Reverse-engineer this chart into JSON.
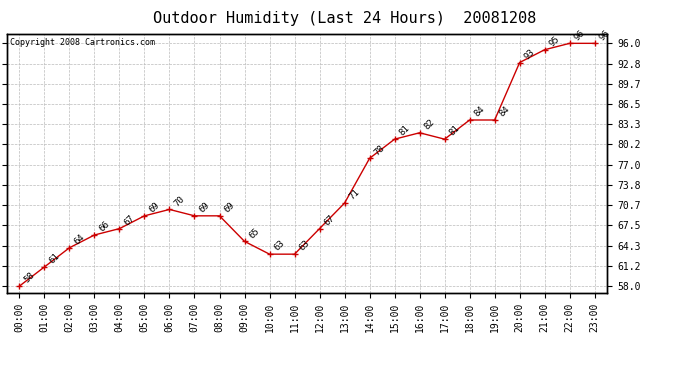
{
  "title": "Outdoor Humidity (Last 24 Hours)  20081208",
  "copyright": "Copyright 2008 Cartronics.com",
  "x_labels": [
    "00:00",
    "01:00",
    "02:00",
    "03:00",
    "04:00",
    "05:00",
    "06:00",
    "07:00",
    "08:00",
    "09:00",
    "10:00",
    "11:00",
    "12:00",
    "13:00",
    "14:00",
    "15:00",
    "16:00",
    "17:00",
    "18:00",
    "19:00",
    "20:00",
    "21:00",
    "22:00",
    "23:00"
  ],
  "y_values": [
    58,
    61,
    64,
    66,
    67,
    69,
    70,
    69,
    69,
    65,
    63,
    63,
    67,
    71,
    78,
    81,
    82,
    81,
    84,
    84,
    93,
    95,
    96,
    96
  ],
  "y_ticks": [
    58.0,
    61.2,
    64.3,
    67.5,
    70.7,
    73.8,
    77.0,
    80.2,
    83.3,
    86.5,
    89.7,
    92.8,
    96.0
  ],
  "ylim": [
    57.0,
    97.5
  ],
  "line_color": "#cc0000",
  "marker_color": "#cc0000",
  "bg_color": "#ffffff",
  "plot_bg_color": "#ffffff",
  "grid_color": "#bbbbbb",
  "title_fontsize": 11,
  "tick_fontsize": 7,
  "copyright_fontsize": 6,
  "annotation_fontsize": 6.5
}
